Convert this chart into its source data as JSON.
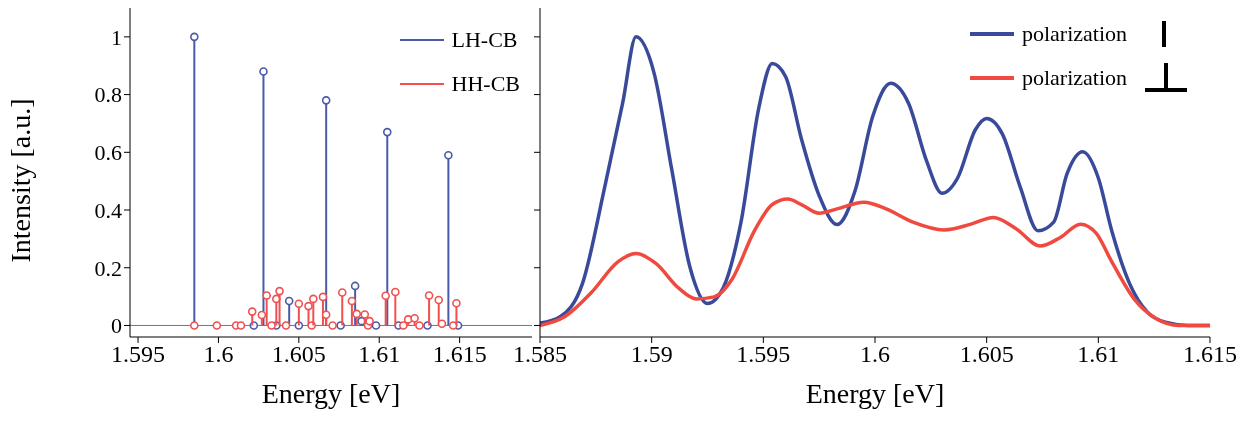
{
  "chart_data": [
    {
      "type": "lollipop",
      "xlabel": "Energy [eV]",
      "ylabel": "Intensity [a.u.]",
      "xlim": [
        1.5945,
        1.6195
      ],
      "xticks": [
        1.595,
        1.6,
        1.605,
        1.61,
        1.615
      ],
      "ylim": [
        -0.04,
        1.1
      ],
      "yticks": [
        0,
        0.2,
        0.4,
        0.6,
        0.8,
        1
      ],
      "legend": "top right",
      "marker": "circle",
      "ref_lines": [
        {
          "axis": "y",
          "value": 0
        }
      ],
      "series": [
        {
          "name": "LH-CB",
          "color": "#4a5aa8",
          "x": [
            1.5985,
            1.6022,
            1.6028,
            1.6036,
            1.6044,
            1.605,
            1.6067,
            1.6076,
            1.6085,
            1.6089,
            1.6098,
            1.6105,
            1.6112,
            1.613,
            1.6143,
            1.6149
          ],
          "values": [
            1.0,
            0,
            0.88,
            0,
            0.085,
            0,
            0.78,
            0,
            0.137,
            0.015,
            0,
            0.67,
            0,
            0,
            0.59,
            0
          ]
        },
        {
          "name": "HH-CB",
          "color": "#f05050",
          "x": [
            1.5985,
            1.5999,
            1.6011,
            1.6014,
            1.6021,
            1.6027,
            1.603,
            1.6033,
            1.6036,
            1.6038,
            1.6042,
            1.605,
            1.6056,
            1.6058,
            1.6059,
            1.6065,
            1.6067,
            1.6071,
            1.6077,
            1.6083,
            1.6086,
            1.6091,
            1.6093,
            1.6094,
            1.6104,
            1.611,
            1.6115,
            1.6118,
            1.6122,
            1.6125,
            1.6131,
            1.6137,
            1.6139,
            1.6146,
            1.6148
          ],
          "values": [
            0,
            0,
            0,
            0,
            0.048,
            0.036,
            0.104,
            0,
            0.092,
            0.119,
            0,
            0.075,
            0.067,
            0,
            0.092,
            0.099,
            0.037,
            0,
            0.114,
            0.085,
            0.04,
            0.038,
            0,
            0.015,
            0.103,
            0.116,
            0,
            0.021,
            0.025,
            0,
            0.104,
            0.088,
            0.006,
            0,
            0.077
          ]
        }
      ]
    },
    {
      "type": "line",
      "xlabel": "Energy [eV]",
      "xlim": [
        1.585,
        1.615
      ],
      "xticks": [
        1.585,
        1.59,
        1.595,
        1.6,
        1.605,
        1.61,
        1.615
      ],
      "ylim": [
        -0.04,
        1.1
      ],
      "yticks": [
        0,
        0.2,
        0.4,
        0.6,
        0.8,
        1
      ],
      "tick_labels": "x",
      "legend": "top right",
      "series": [
        {
          "name": "polarization",
          "color": "#3a4a9a",
          "x": [
            1.585,
            1.5859,
            1.5869,
            1.5879,
            1.5887,
            1.5893,
            1.5901,
            1.5909,
            1.5917,
            1.5925,
            1.5932,
            1.594,
            1.5948,
            1.5954,
            1.596,
            1.5967,
            1.5975,
            1.5983,
            1.5991,
            1.5999,
            1.6007,
            1.6015,
            1.6023,
            1.603,
            1.6037,
            1.6045,
            1.605,
            1.6057,
            1.6065,
            1.6073,
            1.608,
            1.6086,
            1.6093,
            1.61,
            1.6106,
            1.6114,
            1.6122,
            1.613,
            1.614,
            1.615
          ],
          "values": [
            0.008,
            0.03,
            0.145,
            0.48,
            0.77,
            1.0,
            0.877,
            0.54,
            0.206,
            0.076,
            0.13,
            0.358,
            0.755,
            0.908,
            0.862,
            0.648,
            0.45,
            0.35,
            0.465,
            0.725,
            0.839,
            0.77,
            0.572,
            0.458,
            0.511,
            0.679,
            0.717,
            0.664,
            0.48,
            0.328,
            0.358,
            0.526,
            0.602,
            0.511,
            0.328,
            0.145,
            0.046,
            0.011,
            0,
            0
          ]
        },
        {
          "name": "polarization",
          "color": "#f04a40",
          "x": [
            1.585,
            1.5861,
            1.5873,
            1.5885,
            1.5893,
            1.5902,
            1.5912,
            1.592,
            1.5928,
            1.5936,
            1.5946,
            1.5954,
            1.5961,
            1.5967,
            1.5975,
            1.5983,
            1.5995,
            1.6005,
            1.6017,
            1.6031,
            1.6043,
            1.6053,
            1.6063,
            1.6074,
            1.6083,
            1.6092,
            1.6099,
            1.6106,
            1.6116,
            1.6126,
            1.6136,
            1.615
          ],
          "values": [
            0,
            0.03,
            0.114,
            0.221,
            0.249,
            0.214,
            0.13,
            0.092,
            0.099,
            0.16,
            0.328,
            0.419,
            0.438,
            0.419,
            0.389,
            0.404,
            0.427,
            0.404,
            0.358,
            0.331,
            0.351,
            0.374,
            0.336,
            0.275,
            0.305,
            0.351,
            0.32,
            0.221,
            0.092,
            0.023,
            0,
            0
          ]
        }
      ]
    }
  ]
}
